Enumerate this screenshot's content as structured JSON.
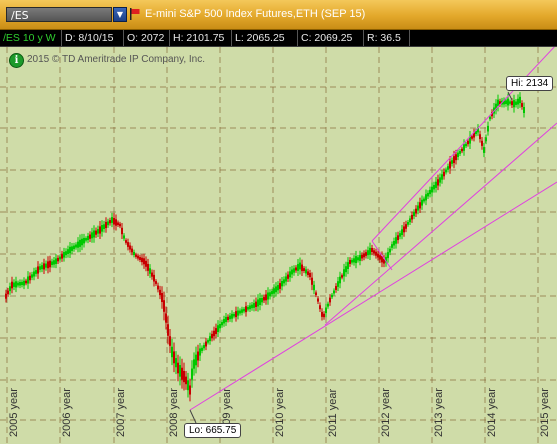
{
  "toolbar": {
    "symbol": "/ES",
    "title": "E-mini S&P 500 Index Futures,ETH (SEP 15)",
    "dropdown_icon": "chevron-down-icon",
    "flag_icon": "flag-icon"
  },
  "status": {
    "period": "/ES 10 y W",
    "date": "D: 8/10/15",
    "open": "O: 2072",
    "high": "H: 2101.75",
    "low": "L: 2065.25",
    "close": "C: 2069.25",
    "range": "R: 36.5"
  },
  "copyright": "2015 © TD Ameritrade IP Company, Inc.",
  "info_icon": "i",
  "hi_label": "Hi: 2134",
  "lo_label": "Lo: 665.75",
  "x_axis_labels": [
    "2005 year",
    "2006 year",
    "2007 year",
    "2008 year",
    "2009 year",
    "2010 year",
    "2011 year",
    "2012 year",
    "2013 year",
    "2014 year",
    "2015 year"
  ],
  "colors": {
    "background": "#cfdca8",
    "up": "#00c800",
    "down": "#c80000",
    "trendline": "#e040e0",
    "grid": "#8a6a3a"
  },
  "chart_data": {
    "type": "candlestick",
    "symbol": "/ES",
    "x_range": [
      "2005",
      "2015-08"
    ],
    "high": 2134,
    "low": 665.75,
    "low_date": "2009-03",
    "high_date": "2015-05",
    "trend_annotations": [
      "support line from 2009 low",
      "upward channel 2011-2015"
    ]
  }
}
